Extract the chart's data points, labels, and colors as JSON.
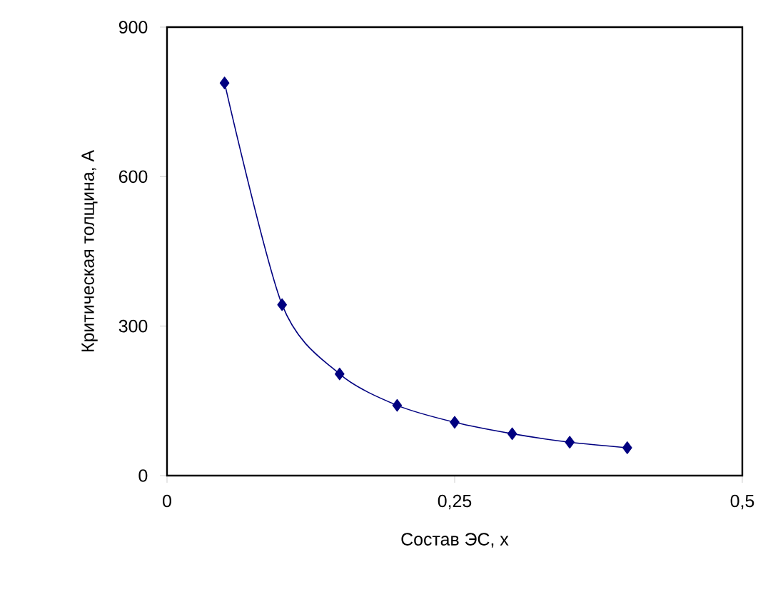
{
  "chart_data": {
    "type": "line",
    "xlabel": "Состав ЭС, x",
    "ylabel": "Критическая толщина, A",
    "x": [
      0.05,
      0.1,
      0.15,
      0.2,
      0.25,
      0.3,
      0.35,
      0.4
    ],
    "series": [
      {
        "color": "#000080",
        "values": [
          788,
          343,
          204,
          141,
          107,
          84,
          67,
          56
        ]
      }
    ],
    "xlim": [
      0,
      0.5
    ],
    "ylim": [
      0,
      900
    ],
    "xticks": [
      0,
      {
        "value": 0.25,
        "label": "0,25"
      },
      {
        "value": 0.5,
        "label": "0,5"
      }
    ],
    "yticks": [
      0,
      300,
      600,
      900
    ],
    "marker": "diamond",
    "line_style": "solid"
  }
}
